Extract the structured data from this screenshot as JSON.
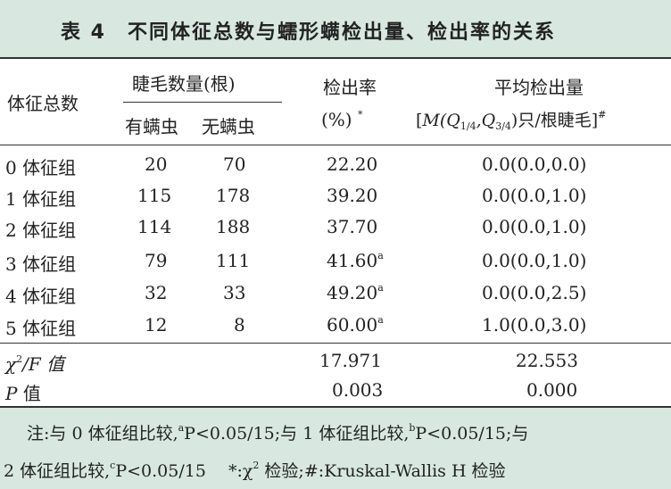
{
  "title": "表 4　不同体征总数与蠕形螨检出量、检出率的关系",
  "header": {
    "group": "体征总数",
    "lash_count": "睫毛数量(根)",
    "with_mite": "有螨虫",
    "without_mite": "无螨虫",
    "rate": "检出率",
    "rate_unit": "(%)",
    "rate_mark": "*",
    "avg": "平均检出量",
    "avg_formula_open": "[",
    "avg_formula_M": "M",
    "avg_formula_mid": "(Q",
    "avg_formula_q1sub": "1/4",
    "avg_formula_comma": ",Q",
    "avg_formula_q3sub": "3/4",
    "avg_formula_close": ")只/根睫毛]",
    "avg_mark": "#"
  },
  "rows": [
    {
      "group": "0 体征组",
      "with": "20",
      "without": "70",
      "rate": "22.20",
      "rate_sup": "",
      "avg": "0.0(0.0,0.0)"
    },
    {
      "group": "1 体征组",
      "with": "115",
      "without": "178",
      "rate": "39.20",
      "rate_sup": "",
      "avg": "0.0(0.0,1.0)"
    },
    {
      "group": "2 体征组",
      "with": "114",
      "without": "188",
      "rate": "37.70",
      "rate_sup": "",
      "avg": "0.0(0.0,1.0)"
    },
    {
      "group": "3 体征组",
      "with": "79",
      "without": "111",
      "rate": "41.60",
      "rate_sup": "a",
      "avg": "0.0(0.0,1.0)"
    },
    {
      "group": "4 体征组",
      "with": "32",
      "without": "33",
      "rate": "49.20",
      "rate_sup": "a",
      "avg": "0.0(0.0,2.5)"
    },
    {
      "group": "5 体征组",
      "with": "12",
      "without": "8",
      "rate": "60.00",
      "rate_sup": "a",
      "avg": "1.0(0.0,3.0)"
    }
  ],
  "stats": {
    "chi_label_chi": "χ",
    "chi_label_sup": "2",
    "chi_label_rest": "/F 值",
    "chi_rate": "17.971",
    "chi_avg": "22.553",
    "p_label_p": "P",
    "p_label_rest": " 值",
    "p_rate": "0.003",
    "p_avg": "0.000"
  },
  "note": {
    "line1_a": "注:与 0 体征组比较,",
    "line1_a_sup": "a",
    "line1_b": "P<0.05/15;与 1 体征组比较,",
    "line1_b_sup": "b",
    "line1_c": "P<0.05/15;与",
    "line2_a": "2 体征组比较,",
    "line2_a_sup": "c",
    "line2_b": "P<0.05/15　 *:χ",
    "line2_b_sup": "2",
    "line2_c": " 检验;#:Kruskal-Wallis H 检验"
  },
  "colors": {
    "title_bg": "#d8e8e1",
    "note_bg": "#d8e8e1",
    "rule": "#333333"
  }
}
